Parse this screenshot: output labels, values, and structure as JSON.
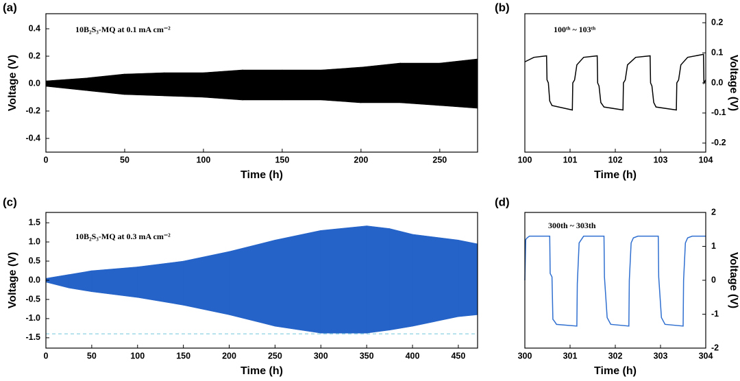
{
  "chart_data": [
    {
      "type": "band",
      "panel_label": "(a)",
      "annotation": "10B₂S₃-MQ at 0.1 mA cm⁻²",
      "xlabel": "Time (h)",
      "ylabel": "Voltage (V)",
      "y_axis_side": "left",
      "color": "#000000",
      "x": [
        0,
        25,
        50,
        75,
        100,
        125,
        150,
        175,
        200,
        225,
        250,
        274
      ],
      "upper": [
        0.02,
        0.04,
        0.07,
        0.08,
        0.08,
        0.1,
        0.1,
        0.1,
        0.12,
        0.15,
        0.15,
        0.18
      ],
      "lower": [
        -0.02,
        -0.05,
        -0.08,
        -0.09,
        -0.1,
        -0.12,
        -0.12,
        -0.12,
        -0.14,
        -0.14,
        -0.16,
        -0.18
      ],
      "xlim": [
        0,
        274
      ],
      "ylim": [
        -0.5,
        0.51
      ],
      "xticks": [
        0,
        50,
        100,
        150,
        200,
        250
      ],
      "yticks": [
        0.4,
        0.2,
        {
          "value": 0,
          "label": "0.0"
        },
        -0.2,
        -0.4
      ]
    },
    {
      "type": "line",
      "panel_label": "(b)",
      "annotation": "100ᵗʰ ~ 103ᵗʰ",
      "xlabel": "Time (h)",
      "ylabel": "Voltage (V)",
      "y_axis_side": "right",
      "color": "#000000",
      "x": [
        100,
        100.2,
        100.48,
        100.49,
        100.52,
        100.55,
        100.6,
        101.05,
        101.06,
        101.1,
        101.15,
        101.3,
        101.6,
        101.61,
        101.64,
        101.68,
        101.75,
        102.17,
        102.18,
        102.22,
        102.27,
        102.45,
        102.77,
        102.78,
        102.81,
        102.85,
        102.9,
        103.35,
        103.36,
        103.4,
        103.45,
        103.6,
        103.95,
        103.96,
        104
      ],
      "values": [
        0.07,
        0.085,
        0.09,
        0.01,
        0,
        -0.06,
        -0.075,
        -0.09,
        0,
        0.01,
        0.06,
        0.085,
        0.09,
        0,
        -0.01,
        -0.065,
        -0.08,
        -0.09,
        0,
        0.01,
        0.06,
        0.085,
        0.09,
        0,
        -0.01,
        -0.065,
        -0.08,
        -0.09,
        0,
        0.01,
        0.06,
        0.085,
        0.095,
        0,
        0.01
      ],
      "xlim": [
        100,
        104
      ],
      "ylim": [
        -0.23,
        0.23
      ],
      "xticks": [
        100,
        101,
        102,
        103,
        104
      ],
      "yticks": [
        0.2,
        0.1,
        {
          "value": 0,
          "label": "0.0"
        },
        -0.1,
        -0.2
      ]
    },
    {
      "type": "band",
      "panel_label": "(c)",
      "annotation": "10B₂S₃-MQ at 0.3 mA cm⁻²",
      "xlabel": "Time (h)",
      "ylabel": "Voltage (V)",
      "y_axis_side": "left",
      "color": "#2563c8",
      "x": [
        0,
        25,
        50,
        100,
        150,
        200,
        250,
        300,
        350,
        375,
        400,
        450,
        471
      ],
      "upper": [
        0.05,
        0.15,
        0.25,
        0.35,
        0.5,
        0.75,
        1.05,
        1.3,
        1.42,
        1.35,
        1.2,
        1.05,
        0.95
      ],
      "lower": [
        -0.05,
        -0.2,
        -0.3,
        -0.45,
        -0.65,
        -0.9,
        -1.2,
        -1.38,
        -1.38,
        -1.3,
        -1.2,
        -0.95,
        -0.9
      ],
      "hline": {
        "value": -1.4,
        "color": "#9fd8e6"
      },
      "xlim": [
        0,
        471
      ],
      "ylim": [
        -1.77,
        1.77
      ],
      "xticks": [
        0,
        50,
        100,
        150,
        200,
        250,
        300,
        350,
        400,
        450
      ],
      "yticks": [
        1.5,
        {
          "value": 1,
          "label": "1.0"
        },
        0.5,
        {
          "value": 0,
          "label": "0.0"
        },
        -0.5,
        {
          "value": -1,
          "label": "-1.0"
        },
        -1.5
      ]
    },
    {
      "type": "line",
      "panel_label": "(d)",
      "annotation": "300th ~ 303th",
      "xlabel": "Time (h)",
      "ylabel": "Voltage (V)",
      "y_axis_side": "right",
      "color": "#2f6fd0",
      "x": [
        300,
        300.02,
        300.05,
        300.1,
        300.55,
        300.56,
        300.6,
        300.62,
        300.65,
        300.7,
        301.15,
        301.16,
        301.2,
        301.25,
        301.3,
        301.75,
        301.76,
        301.82,
        301.9,
        302.3,
        302.31,
        302.35,
        302.4,
        302.5,
        302.95,
        302.96,
        303.02,
        303.1,
        303.5,
        303.51,
        303.55,
        303.6,
        303.7,
        304
      ],
      "values": [
        0,
        1.2,
        1.25,
        1.3,
        1.3,
        0.2,
        0.1,
        -1.15,
        -1.2,
        -1.3,
        -1.35,
        -0.1,
        1.1,
        1.2,
        1.3,
        1.3,
        0.1,
        -1.1,
        -1.3,
        -1.35,
        0,
        1.1,
        1.25,
        1.3,
        1.3,
        0.1,
        -1.1,
        -1.3,
        -1.35,
        0,
        1.1,
        1.25,
        1.3,
        1.3
      ],
      "xlim": [
        300,
        304
      ],
      "ylim": [
        -2,
        2
      ],
      "xticks": [
        300,
        301,
        302,
        303,
        304
      ],
      "yticks": [
        2,
        1,
        0,
        -1,
        -2
      ]
    }
  ]
}
